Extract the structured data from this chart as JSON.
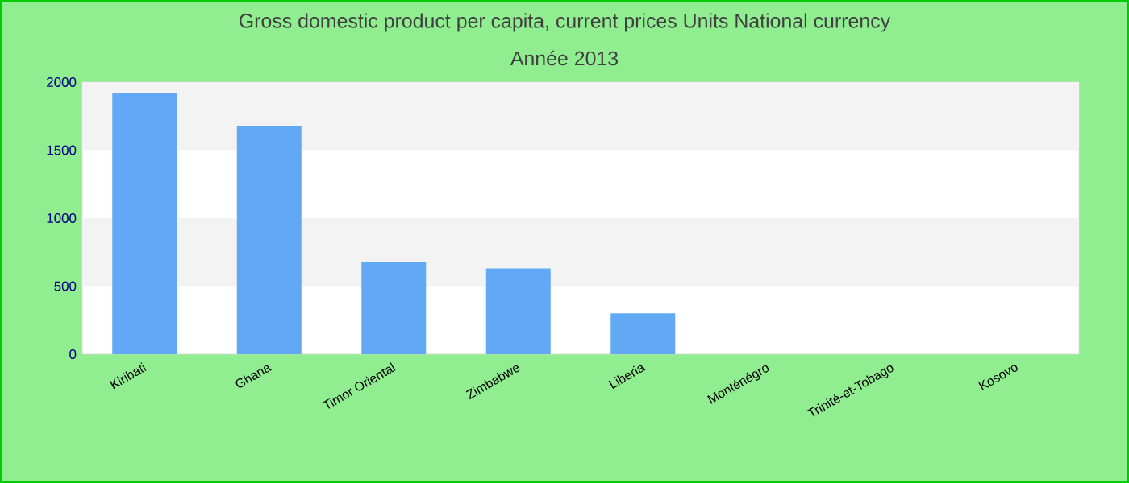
{
  "chart_data": {
    "type": "bar",
    "title": "Gross domestic product per capita, current prices Units National currency",
    "subtitle": "Année 2013",
    "categories": [
      "Kiribati",
      "Ghana",
      "Timor Oriental",
      "Zimbabwe",
      "Liberia",
      "Monténégro",
      "Trinité-et-Tobago",
      "Kosovo"
    ],
    "values": [
      1920,
      1680,
      680,
      630,
      300,
      0,
      0,
      0
    ],
    "color": "#62a9f5",
    "ylim": [
      0,
      2000
    ],
    "yticks": [
      0,
      500,
      1000,
      1500,
      2000
    ]
  }
}
